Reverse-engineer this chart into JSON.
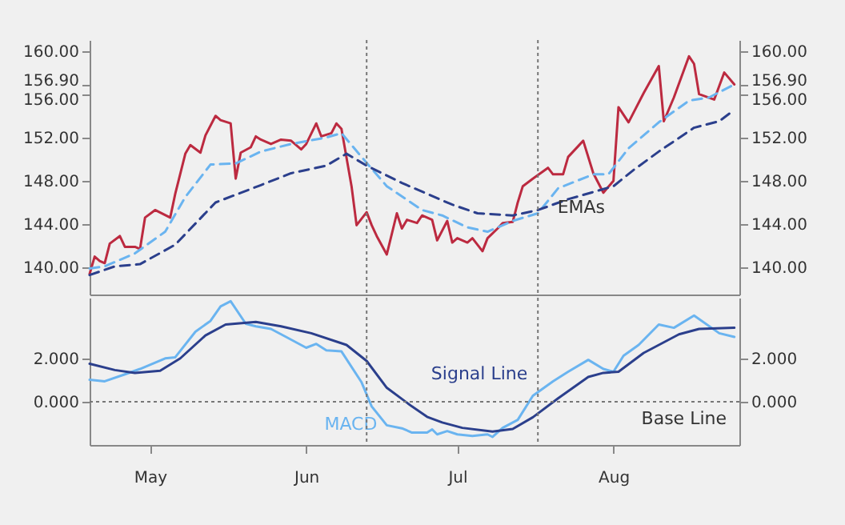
{
  "chart_data": [
    {
      "type": "line",
      "xlim": [
        "--04-19",
        "--08-26"
      ],
      "xticks": [
        {
          "value": "--05-01",
          "label": "May"
        },
        {
          "value": "--06-01",
          "label": "Jun"
        },
        {
          "value": "--07-01",
          "label": "Jul"
        },
        {
          "value": "--08-01",
          "label": "Aug"
        }
      ],
      "ylim": [
        137.5,
        161
      ],
      "yticks": [
        {
          "value": 140,
          "label": "140.00"
        },
        {
          "value": 144,
          "label": "144.00"
        },
        {
          "value": 148,
          "label": "148.00"
        },
        {
          "value": 152,
          "label": "152.00"
        },
        {
          "value": 156,
          "label": "156.00"
        },
        {
          "value": 156.9,
          "label": "156.90"
        },
        {
          "value": 160,
          "label": "160.00"
        }
      ],
      "y2lim": [
        137.5,
        161
      ],
      "y2ticks": [
        {
          "value": 140,
          "label": "140.00"
        },
        {
          "value": 144,
          "label": "144.00"
        },
        {
          "value": 148,
          "label": "148.00"
        },
        {
          "value": 152,
          "label": "152.00"
        },
        {
          "value": 156,
          "label": "156.00"
        },
        {
          "value": 156.9,
          "label": "156.90"
        },
        {
          "value": 160,
          "label": "160.00"
        }
      ],
      "tick_labels": "y",
      "series": [
        {
          "color": "#bc2a40",
          "x": [
            "--04-19",
            "--04-20",
            "--04-21",
            "--04-22",
            "--04-23",
            "--04-25",
            "--04-26",
            "--04-28",
            "--04-29",
            "--04-30",
            "--05-02",
            "--05-05",
            "--05-06",
            "--05-08",
            "--05-09",
            "--05-11",
            "--05-12",
            "--05-14",
            "--05-15",
            "--05-17",
            "--05-18",
            "--05-19",
            "--05-21",
            "--05-22",
            "--05-23",
            "--05-25",
            "--05-27",
            "--05-29",
            "--05-31",
            "--06-01",
            "--06-03",
            "--06-04",
            "--06-06",
            "--06-07",
            "--06-08",
            "--06-10",
            "--06-11",
            "--06-13",
            "--06-14",
            "--06-15",
            "--06-17",
            "--06-19",
            "--06-20",
            "--06-21",
            "--06-23",
            "--06-24",
            "--06-26",
            "--06-27",
            "--06-29",
            "--06-30",
            "--07-01",
            "--07-03",
            "--07-04",
            "--07-06",
            "--07-07",
            "--07-09",
            "--07-10",
            "--07-12",
            "--07-13",
            "--07-14",
            "--07-16",
            "--07-19",
            "--07-20",
            "--07-22",
            "--07-23",
            "--07-25",
            "--07-26",
            "--07-28",
            "--07-30",
            "--08-01",
            "--08-02",
            "--08-04",
            "--08-05",
            "--08-07",
            "--08-10",
            "--08-11",
            "--08-13",
            "--08-16",
            "--08-17",
            "--08-18",
            "--08-21",
            "--08-23",
            "--08-25"
          ],
          "values": [
            139.4,
            141.0,
            140.6,
            140.4,
            142.2,
            142.9,
            141.9,
            141.9,
            141.7,
            144.6,
            145.3,
            144.6,
            146.8,
            150.5,
            151.3,
            150.6,
            152.2,
            154.0,
            153.6,
            153.3,
            148.2,
            150.6,
            151.1,
            152.1,
            151.8,
            151.4,
            151.8,
            151.7,
            150.9,
            151.4,
            153.3,
            152.1,
            152.4,
            153.3,
            152.8,
            147.5,
            143.9,
            145.1,
            143.9,
            142.9,
            141.2,
            145.0,
            143.6,
            144.4,
            144.1,
            144.8,
            144.4,
            142.5,
            144.3,
            142.3,
            142.7,
            142.3,
            142.7,
            141.5,
            142.7,
            143.6,
            144.1,
            144.2,
            146.0,
            147.5,
            148.2,
            149.2,
            148.6,
            148.6,
            150.2,
            151.2,
            151.7,
            148.7,
            146.9,
            148.0,
            154.8,
            153.4,
            154.3,
            156.1,
            158.6,
            153.5,
            155.7,
            159.5,
            158.8,
            156.0,
            155.5,
            158.0,
            156.9
          ]
        },
        {
          "color": "#6ab4f0",
          "line_style": "dashed",
          "x": [
            "--04-19",
            "--04-22",
            "--04-28",
            "--05-04",
            "--05-08",
            "--05-13",
            "--05-18",
            "--05-23",
            "--05-29",
            "--06-05",
            "--06-08",
            "--06-12",
            "--06-17",
            "--06-24",
            "--06-28",
            "--07-03",
            "--07-07",
            "--07-12",
            "--07-17",
            "--07-21",
            "--07-28",
            "--07-31",
            "--08-04",
            "--08-10",
            "--08-16",
            "--08-20",
            "--08-25"
          ],
          "values": [
            139.9,
            140.1,
            141.3,
            143.3,
            146.5,
            149.5,
            149.6,
            150.7,
            151.4,
            152.0,
            152.4,
            150.2,
            147.5,
            145.3,
            144.8,
            143.7,
            143.3,
            144.3,
            145.0,
            147.3,
            148.6,
            148.6,
            151.0,
            153.4,
            155.4,
            155.7,
            156.9
          ]
        },
        {
          "color": "#2b3f8c",
          "line_style": "dashed",
          "x": [
            "--04-19",
            "--04-24",
            "--04-29",
            "--05-06",
            "--05-14",
            "--05-23",
            "--05-29",
            "--06-05",
            "--06-09",
            "--06-13",
            "--06-20",
            "--06-25",
            "--06-30",
            "--07-05",
            "--07-12",
            "--07-17",
            "--07-23",
            "--07-29",
            "--08-01",
            "--08-05",
            "--08-10",
            "--08-17",
            "--08-22",
            "--08-24"
          ],
          "values": [
            139.3,
            140.1,
            140.3,
            142.1,
            146.0,
            147.6,
            148.7,
            149.4,
            150.5,
            149.4,
            147.8,
            146.8,
            145.8,
            145.0,
            144.8,
            145.3,
            146.3,
            147.1,
            147.5,
            149.0,
            150.7,
            152.9,
            153.5,
            154.2
          ]
        }
      ],
      "ref_lines": [
        {
          "axis": "x",
          "value": "--06-13",
          "color": "#777777",
          "line_style": "dotted"
        },
        {
          "axis": "x",
          "value": "--07-17",
          "color": "#777777",
          "line_style": "dotted"
        }
      ],
      "annotations": [
        "EMAs"
      ]
    },
    {
      "type": "line",
      "xlim": [
        "--04-19",
        "--08-26"
      ],
      "xticks": [
        {
          "value": "--05-01",
          "label": "May"
        },
        {
          "value": "--06-01",
          "label": "Jun"
        },
        {
          "value": "--07-01",
          "label": "Jul"
        },
        {
          "value": "--08-01",
          "label": "Aug"
        }
      ],
      "ylim": [
        -2,
        4.8
      ],
      "yticks": [
        {
          "value": 0,
          "label": "0.000"
        },
        {
          "value": 2,
          "label": "2.000"
        }
      ],
      "y2lim": [
        -2,
        4.8
      ],
      "y2ticks": [
        {
          "value": 0,
          "label": "0.000"
        },
        {
          "value": 2,
          "label": "2.000"
        }
      ],
      "series": [
        {
          "name": "MACD",
          "color": "#6ab4f0",
          "x": [
            "--04-19",
            "--04-22",
            "--04-26",
            "--04-29",
            "--05-04",
            "--05-06",
            "--05-10",
            "--05-13",
            "--05-15",
            "--05-17",
            "--05-20",
            "--05-22",
            "--05-25",
            "--05-28",
            "--06-01",
            "--06-03",
            "--06-05",
            "--06-08",
            "--06-12",
            "--06-14",
            "--06-17",
            "--06-20",
            "--06-22",
            "--06-25",
            "--06-26",
            "--06-27",
            "--06-29",
            "--07-01",
            "--07-04",
            "--07-07",
            "--07-08",
            "--07-10",
            "--07-13",
            "--07-16",
            "--07-20",
            "--07-23",
            "--07-27",
            "--07-30",
            "--08-01",
            "--08-03",
            "--08-06",
            "--08-10",
            "--08-13",
            "--08-17",
            "--08-22",
            "--08-25"
          ],
          "values": [
            1.01,
            0.94,
            1.26,
            1.51,
            2.0,
            2.05,
            3.23,
            3.73,
            4.4,
            4.64,
            3.6,
            3.48,
            3.36,
            2.99,
            2.49,
            2.67,
            2.37,
            2.32,
            0.89,
            -0.22,
            -1.09,
            -1.23,
            -1.43,
            -1.43,
            -1.28,
            -1.51,
            -1.36,
            -1.51,
            -1.58,
            -1.51,
            -1.63,
            -1.21,
            -0.84,
            0.27,
            0.94,
            1.38,
            1.93,
            1.51,
            1.38,
            2.12,
            2.62,
            3.56,
            3.41,
            3.98,
            3.16,
            2.99
          ]
        },
        {
          "name": "Signal Line",
          "color": "#2b3f8c",
          "x": [
            "--04-19",
            "--04-24",
            "--04-28",
            "--05-03",
            "--05-07",
            "--05-12",
            "--05-16",
            "--05-22",
            "--05-27",
            "--06-02",
            "--06-09",
            "--06-13",
            "--06-17",
            "--06-22",
            "--06-25",
            "--06-28",
            "--07-02",
            "--07-08",
            "--07-12",
            "--07-16",
            "--07-21",
            "--07-27",
            "--07-30",
            "--08-02",
            "--08-07",
            "--08-14",
            "--08-18",
            "--08-25"
          ],
          "values": [
            1.75,
            1.46,
            1.33,
            1.43,
            2.0,
            3.06,
            3.56,
            3.68,
            3.48,
            3.16,
            2.62,
            1.88,
            0.64,
            -0.22,
            -0.7,
            -0.96,
            -1.21,
            -1.38,
            -1.26,
            -0.72,
            0.15,
            1.14,
            1.33,
            1.38,
            2.25,
            3.11,
            3.36,
            3.41
          ]
        }
      ],
      "ref_lines": [
        {
          "axis": "y",
          "value": 0,
          "label": "Base Line",
          "color": "#777777",
          "line_style": "dotted"
        },
        {
          "axis": "x",
          "value": "--06-13",
          "color": "#777777",
          "line_style": "dotted"
        },
        {
          "axis": "x",
          "value": "--07-17",
          "color": "#777777",
          "line_style": "dotted"
        }
      ]
    }
  ]
}
